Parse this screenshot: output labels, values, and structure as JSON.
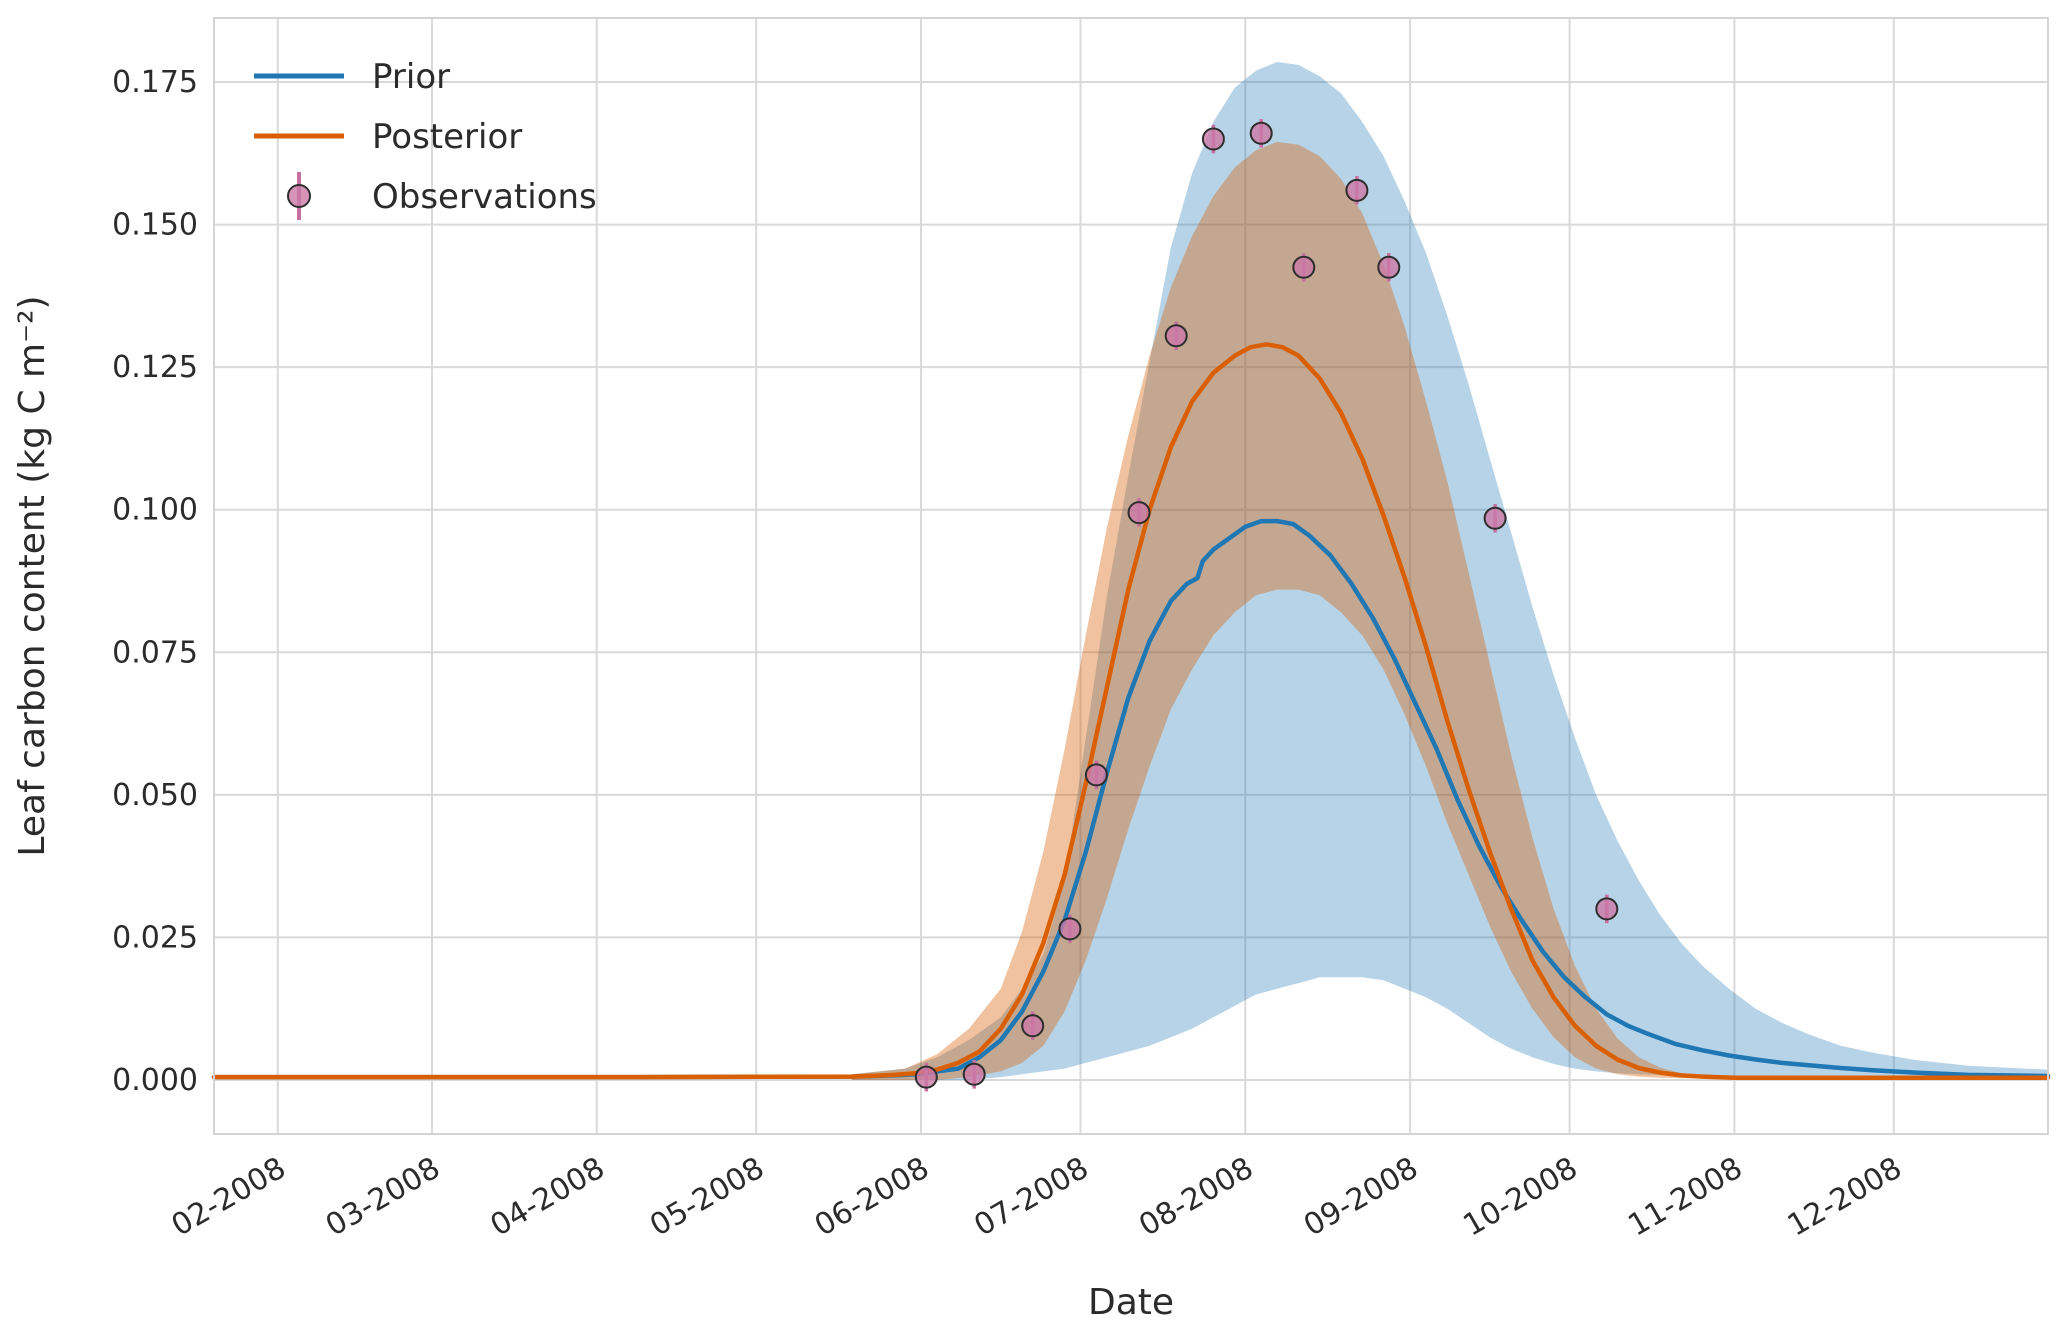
{
  "chart_data": {
    "type": "line",
    "title": "",
    "xlabel": "Date",
    "ylabel": "Leaf carbon content (kg C m⁻²)",
    "grid": true,
    "legend_position": "upper-left",
    "x_domain": [
      20,
      365
    ],
    "y_domain": [
      -0.0095,
      0.1862
    ],
    "colors": {
      "prior": "#1f77b4",
      "posterior": "#d95f02",
      "prior_band": "#1f77b4",
      "posterior_band": "#d95f02",
      "observation_fill": "#cc79a7",
      "observation_edge": "#2e2e2e",
      "errorbar": "#c76fa1",
      "grid": "#d9d9d9",
      "text": "#2b2b2b",
      "border": "#d4d4d4"
    },
    "legend": [
      {
        "label": "Prior",
        "type": "line",
        "color": "#1f77b4"
      },
      {
        "label": "Posterior",
        "type": "line",
        "color": "#d95f02"
      },
      {
        "label": "Observations",
        "type": "marker",
        "color": "#cc79a7"
      }
    ],
    "x_axis": {
      "ticks": [
        {
          "day": 32,
          "label": "02-2008"
        },
        {
          "day": 61,
          "label": "03-2008"
        },
        {
          "day": 92,
          "label": "04-2008"
        },
        {
          "day": 122,
          "label": "05-2008"
        },
        {
          "day": 153,
          "label": "06-2008"
        },
        {
          "day": 183,
          "label": "07-2008"
        },
        {
          "day": 214,
          "label": "08-2008"
        },
        {
          "day": 245,
          "label": "09-2008"
        },
        {
          "day": 275,
          "label": "10-2008"
        },
        {
          "day": 306,
          "label": "11-2008"
        },
        {
          "day": 336,
          "label": "12-2008"
        }
      ]
    },
    "y_axis": {
      "ticks": [
        {
          "value": 0.0,
          "label": "0.000"
        },
        {
          "value": 0.025,
          "label": "0.025"
        },
        {
          "value": 0.05,
          "label": "0.050"
        },
        {
          "value": 0.075,
          "label": "0.075"
        },
        {
          "value": 0.1,
          "label": "0.100"
        },
        {
          "value": 0.125,
          "label": "0.125"
        },
        {
          "value": 0.15,
          "label": "0.150"
        },
        {
          "value": 0.175,
          "label": "0.175"
        }
      ]
    },
    "bands": [
      {
        "name": "prior",
        "color": "#1f77b4",
        "opacity": 0.32,
        "x": [
          140,
          150,
          156,
          162,
          168,
          172,
          176,
          180,
          184,
          188,
          192,
          196,
          200,
          204,
          208,
          212,
          216,
          220,
          224,
          228,
          232,
          236,
          240,
          244,
          248,
          252,
          256,
          260,
          264,
          268,
          272,
          276,
          280,
          284,
          288,
          292,
          296,
          300,
          305,
          310,
          315,
          320,
          326,
          332,
          340,
          350,
          365
        ],
        "lo": [
          0,
          0,
          0,
          0,
          0.0005,
          0.001,
          0.0015,
          0.002,
          0.003,
          0.004,
          0.005,
          0.006,
          0.0075,
          0.009,
          0.011,
          0.013,
          0.015,
          0.016,
          0.017,
          0.018,
          0.018,
          0.018,
          0.0175,
          0.016,
          0.0145,
          0.0125,
          0.01,
          0.0075,
          0.0055,
          0.004,
          0.0028,
          0.002,
          0.0015,
          0.0012,
          0.001,
          0.0009,
          0.0008,
          0.0007,
          0.0006,
          0.0006,
          0.0005,
          0.0005,
          0.0005,
          0.0004,
          0.0004,
          0.0004,
          0.0003
        ],
        "hi": [
          0.001,
          0.002,
          0.004,
          0.007,
          0.011,
          0.016,
          0.022,
          0.035,
          0.06,
          0.085,
          0.106,
          0.126,
          0.146,
          0.159,
          0.168,
          0.174,
          0.177,
          0.1785,
          0.178,
          0.176,
          0.173,
          0.168,
          0.162,
          0.154,
          0.145,
          0.134,
          0.122,
          0.109,
          0.096,
          0.083,
          0.071,
          0.06,
          0.05,
          0.042,
          0.035,
          0.029,
          0.024,
          0.02,
          0.016,
          0.0125,
          0.01,
          0.008,
          0.006,
          0.0048,
          0.0035,
          0.0025,
          0.0018
        ]
      },
      {
        "name": "posterior",
        "color": "#d95f02",
        "opacity": 0.38,
        "x": [
          140,
          150,
          156,
          162,
          168,
          172,
          176,
          180,
          184,
          188,
          192,
          196,
          200,
          204,
          208,
          212,
          216,
          220,
          224,
          228,
          232,
          236,
          240,
          244,
          248,
          252,
          256,
          260,
          264,
          268,
          272,
          276,
          280,
          284,
          288,
          292,
          296,
          300,
          306,
          312,
          320,
          330,
          345,
          365
        ],
        "lo": [
          0,
          0,
          0,
          0.0005,
          0.0015,
          0.003,
          0.006,
          0.012,
          0.021,
          0.032,
          0.044,
          0.055,
          0.065,
          0.072,
          0.078,
          0.082,
          0.085,
          0.086,
          0.086,
          0.085,
          0.082,
          0.078,
          0.072,
          0.064,
          0.055,
          0.045,
          0.036,
          0.027,
          0.019,
          0.0125,
          0.0075,
          0.004,
          0.002,
          0.001,
          0.0006,
          0.0004,
          0.0003,
          0.0003,
          0.0002,
          0.0002,
          0.0002,
          0.0002,
          0.0002,
          0.0002
        ],
        "hi": [
          0.001,
          0.002,
          0.0045,
          0.009,
          0.016,
          0.026,
          0.04,
          0.058,
          0.078,
          0.097,
          0.113,
          0.127,
          0.139,
          0.148,
          0.155,
          0.16,
          0.163,
          0.1645,
          0.164,
          0.162,
          0.158,
          0.152,
          0.143,
          0.132,
          0.119,
          0.105,
          0.089,
          0.073,
          0.057,
          0.0425,
          0.03,
          0.02,
          0.0125,
          0.0073,
          0.004,
          0.0022,
          0.0012,
          0.0007,
          0.0004,
          0.0003,
          0.0003,
          0.0003,
          0.0003,
          0.0003
        ]
      }
    ],
    "series": [
      {
        "name": "Prior",
        "color": "#1f77b4",
        "x": [
          20,
          60,
          100,
          140,
          148,
          152,
          156,
          160,
          164,
          168,
          172,
          176,
          180,
          184,
          188,
          192,
          196,
          200,
          203,
          205,
          206,
          208,
          211,
          214,
          217,
          220,
          223,
          226,
          230,
          234,
          238,
          242,
          246,
          250,
          254,
          258,
          262,
          266,
          270,
          274,
          278,
          282,
          286,
          290,
          295,
          300,
          305,
          310,
          315,
          320,
          326,
          332,
          340,
          350,
          365
        ],
        "y": [
          0.0005,
          0.0005,
          0.0005,
          0.0006,
          0.0008,
          0.001,
          0.0015,
          0.002,
          0.004,
          0.007,
          0.012,
          0.019,
          0.028,
          0.04,
          0.054,
          0.067,
          0.077,
          0.084,
          0.087,
          0.088,
          0.091,
          0.093,
          0.095,
          0.097,
          0.098,
          0.098,
          0.0975,
          0.0955,
          0.092,
          0.087,
          0.081,
          0.074,
          0.066,
          0.058,
          0.049,
          0.041,
          0.034,
          0.028,
          0.0225,
          0.018,
          0.0145,
          0.0115,
          0.0095,
          0.008,
          0.0063,
          0.0052,
          0.0043,
          0.0036,
          0.003,
          0.0026,
          0.0021,
          0.0017,
          0.0013,
          0.0009,
          0.0007
        ]
      },
      {
        "name": "Posterior",
        "color": "#d95f02",
        "x": [
          20,
          60,
          100,
          140,
          148,
          152,
          156,
          160,
          164,
          168,
          172,
          176,
          180,
          184,
          188,
          192,
          196,
          200,
          204,
          208,
          212,
          215,
          218,
          221,
          224,
          228,
          232,
          236,
          240,
          244,
          248,
          252,
          256,
          260,
          264,
          268,
          272,
          276,
          280,
          284,
          288,
          292,
          296,
          300,
          306,
          312,
          320,
          330,
          345,
          365
        ],
        "y": [
          0.0005,
          0.0005,
          0.0005,
          0.0006,
          0.0009,
          0.0012,
          0.0018,
          0.003,
          0.005,
          0.009,
          0.015,
          0.024,
          0.036,
          0.052,
          0.069,
          0.086,
          0.1,
          0.111,
          0.119,
          0.124,
          0.127,
          0.1285,
          0.129,
          0.1285,
          0.127,
          0.123,
          0.117,
          0.109,
          0.099,
          0.088,
          0.076,
          0.063,
          0.051,
          0.04,
          0.03,
          0.021,
          0.0145,
          0.0095,
          0.006,
          0.0036,
          0.0021,
          0.0013,
          0.0008,
          0.0006,
          0.0004,
          0.0004,
          0.0004,
          0.0004,
          0.0004,
          0.0004
        ]
      }
    ],
    "observations": {
      "name": "Observations",
      "color": "#cc79a7",
      "edge_color": "#2e2e2e",
      "error_color": "#c76fa1",
      "yerr": 0.0025,
      "x": [
        154,
        163,
        174,
        181,
        186,
        194,
        201,
        208,
        217,
        225,
        235,
        241,
        261,
        282
      ],
      "y": [
        0.0005,
        0.001,
        0.0095,
        0.0265,
        0.0535,
        0.0995,
        0.1305,
        0.165,
        0.166,
        0.1425,
        0.156,
        0.1425,
        0.0985,
        0.03
      ]
    }
  }
}
